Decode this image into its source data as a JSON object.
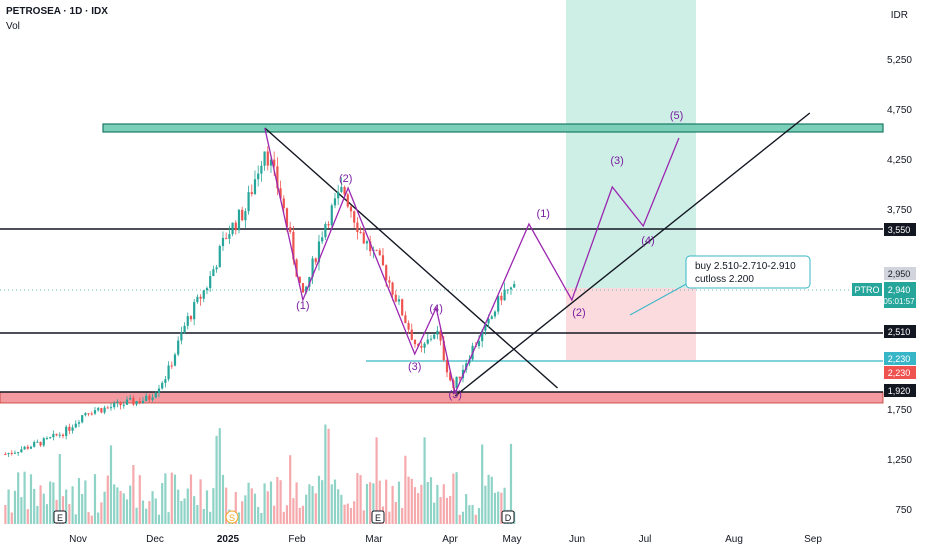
{
  "header": {
    "title": "PETROSEA · 1D · IDX",
    "volume_label": "Vol",
    "currency": "IDR"
  },
  "chart_data": {
    "type": "candlestick",
    "symbol": "PTRO",
    "x_ticks": [
      "Nov",
      "Dec",
      "2025",
      "Feb",
      "Mar",
      "Apr",
      "May",
      "Jun",
      "Jul",
      "Aug",
      "Sep"
    ],
    "y_ticks": [
      5250,
      4750,
      4250,
      3750,
      1750,
      1250,
      750
    ],
    "y_tick_labels": [
      "5,250",
      "4,750",
      "4,250",
      "3,750",
      "1,750",
      "1,250",
      "750"
    ],
    "last_price": {
      "symbol": "PTRO",
      "value": "2,940",
      "countdown": "05:01:57"
    },
    "price_labels": [
      {
        "value": "3,550",
        "style": "black"
      },
      {
        "value": "2,950",
        "style": "grey"
      },
      {
        "value": "2,510",
        "style": "black"
      },
      {
        "value": "2,230",
        "style": "cyan"
      },
      {
        "value": "2,230",
        "style": "red"
      },
      {
        "value": "1,920",
        "style": "black"
      }
    ],
    "horizontal_levels": [
      3550,
      2510,
      2230,
      1920
    ],
    "resistance_zone": [
      4520,
      4600
    ],
    "support_zone": [
      1810,
      1920
    ],
    "price_path": [
      [
        "2024-10-02",
        1300
      ],
      [
        "2024-10-10",
        1360
      ],
      [
        "2024-10-20",
        1440
      ],
      [
        "2024-10-28",
        1540
      ],
      [
        "2024-11-05",
        1730
      ],
      [
        "2024-11-14",
        1760
      ],
      [
        "2024-11-22",
        1810
      ],
      [
        "2024-12-01",
        1850
      ],
      [
        "2024-12-09",
        2100
      ],
      [
        "2024-12-17",
        2620
      ],
      [
        "2024-12-26",
        3000
      ],
      [
        "2025-01-03",
        3500
      ],
      [
        "2025-01-11",
        3750
      ],
      [
        "2025-01-19",
        4380
      ],
      [
        "2025-01-26",
        3850
      ],
      [
        "2025-02-04",
        2840
      ],
      [
        "2025-02-13",
        3600
      ],
      [
        "2025-02-21",
        3950
      ],
      [
        "2025-03-01",
        3470
      ],
      [
        "2025-03-10",
        3150
      ],
      [
        "2025-03-18",
        2700
      ],
      [
        "2025-03-25",
        2300
      ],
      [
        "2025-04-01",
        2550
      ],
      [
        "2025-04-08",
        1950
      ],
      [
        "2025-04-16",
        2350
      ],
      [
        "2025-04-23",
        2600
      ],
      [
        "2025-04-29",
        2920
      ],
      [
        "2025-05-05",
        2950
      ]
    ],
    "volume_x_ticks": [],
    "volume_bar_note": "volume histogram follows candle direction",
    "wave_labels": [
      {
        "text": "(1)",
        "date": "2025-02-04",
        "price": 2750
      },
      {
        "text": "(2)",
        "date": "2025-02-22",
        "price": 4020
      },
      {
        "text": "(3)",
        "date": "2025-03-23",
        "price": 2140
      },
      {
        "text": "(4)",
        "date": "2025-04-01",
        "price": 2720
      },
      {
        "text": "(5)",
        "date": "2025-04-09",
        "price": 1860
      },
      {
        "text": "(1)",
        "date": "2025-05-16",
        "price": 3670
      },
      {
        "text": "(2)",
        "date": "2025-05-31",
        "price": 2680
      },
      {
        "text": "(3)",
        "date": "2025-06-16",
        "price": 4200
      },
      {
        "text": "(4)",
        "date": "2025-06-29",
        "price": 3400
      },
      {
        "text": "(5)",
        "date": "2025-07-11",
        "price": 4650
      }
    ],
    "annotation": {
      "line1": "buy 2.510-2.710-2.910",
      "line2": "cutloss 2.200"
    },
    "event_markers": [
      "E",
      "S",
      "E",
      "D"
    ]
  }
}
